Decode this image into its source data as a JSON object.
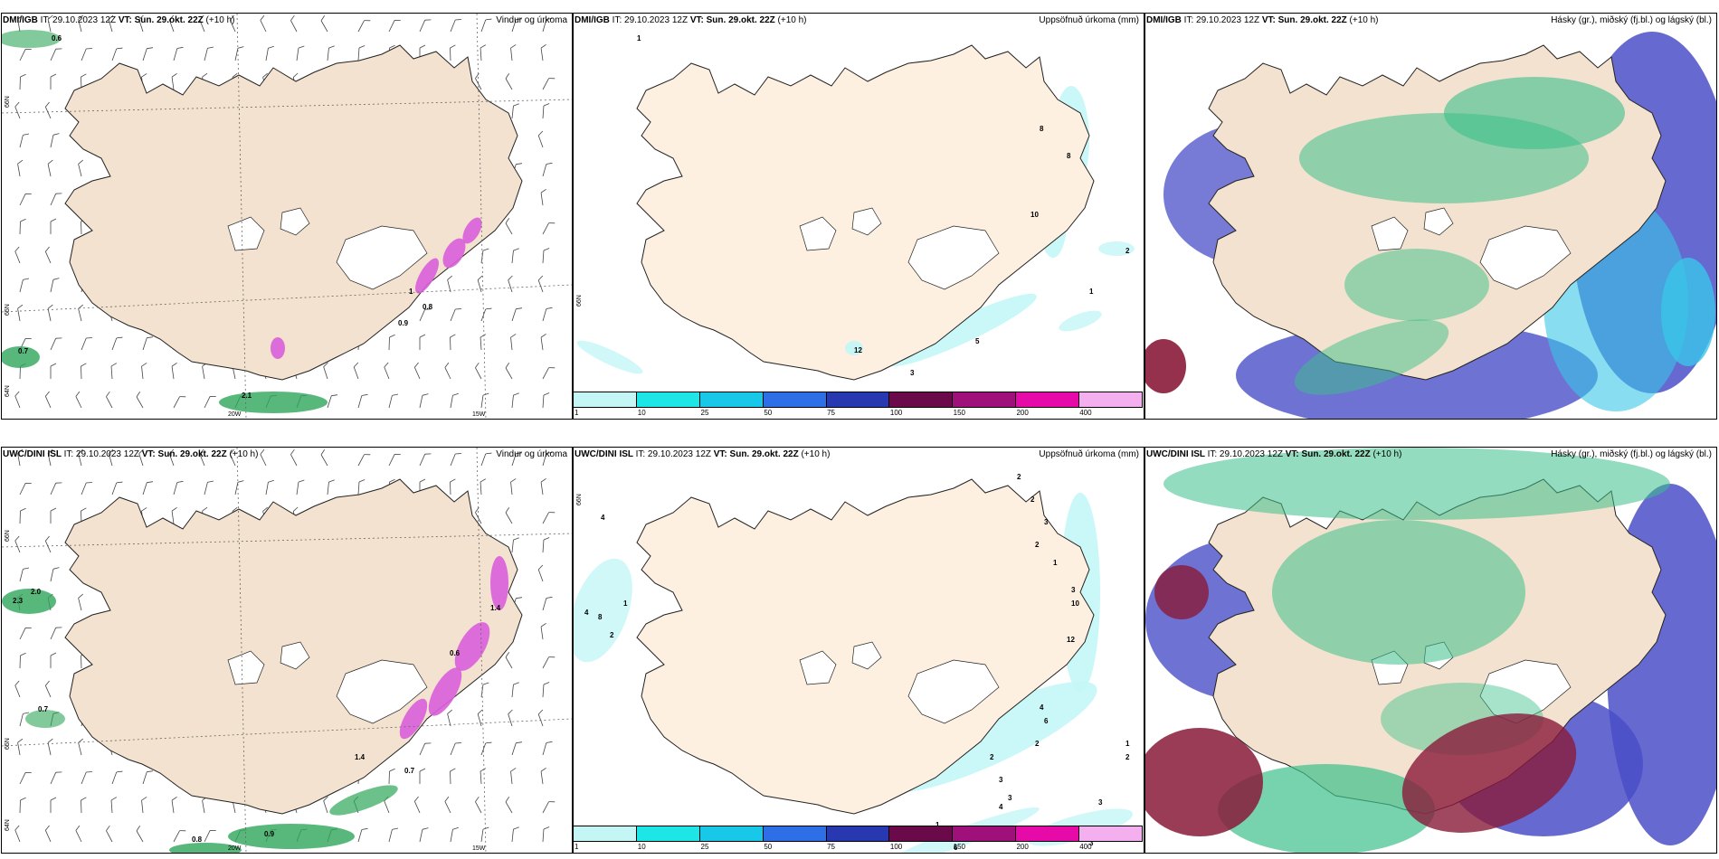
{
  "panels": [
    {
      "id": "p1",
      "model": "DMI/IGB",
      "it_label": "IT:",
      "it": "29.10.2023 12Z",
      "vt_label": "VT: Sun. 29.okt. 22Z",
      "lead": "(+10 h)",
      "title": "Vindur og úrkoma",
      "values": [
        "0.6",
        "0.8",
        "0.9",
        "2.1",
        "1",
        "0.7"
      ],
      "axis_labels": [
        "66N",
        "65N",
        "64N",
        "20W",
        "15W"
      ]
    },
    {
      "id": "p2",
      "model": "DMI/IGB",
      "it_label": "IT:",
      "it": "29.10.2023 12Z",
      "vt_label": "VT: Sun. 29.okt. 22Z",
      "lead": "(+10 h)",
      "title": "Uppsöfnuð úrkoma (mm)",
      "values": [
        "1",
        "8",
        "8",
        "10",
        "2",
        "1",
        "5",
        "3",
        "12"
      ],
      "axis_labels": [
        "66N"
      ]
    },
    {
      "id": "p3",
      "model": "DMI/IGB",
      "it_label": "IT:",
      "it": "29.10.2023 12Z",
      "vt_label": "VT: Sun. 29.okt. 22Z",
      "lead": "(+10 h)",
      "title": "Hásky (gr.), miðský (fj.bl.) og lágský (bl.)"
    },
    {
      "id": "p4",
      "model": "UWC/DINI ISL",
      "it_label": "IT:",
      "it": "29.10.2023 12Z",
      "vt_label": "VT: Sun. 29.okt. 22Z",
      "lead": "(+10 h)",
      "title": "Vindur og úrkoma",
      "values": [
        "2.3",
        "2.0",
        "0.7",
        "0.7",
        "1.4",
        "0.8",
        "0.9",
        "0.6",
        "1.4"
      ],
      "axis_labels": [
        "66N",
        "65N",
        "64N",
        "20W",
        "15W"
      ]
    },
    {
      "id": "p5",
      "model": "UWC/DINI ISL",
      "it_label": "IT:",
      "it": "29.10.2023 12Z",
      "vt_label": "VT: Sun. 29.okt. 22Z",
      "lead": "(+10 h)",
      "title": "Uppsöfnuð úrkoma (mm)",
      "values": [
        "4",
        "4",
        "8",
        "1",
        "2",
        "2",
        "2",
        "3",
        "2",
        "1",
        "3",
        "10",
        "12",
        "4",
        "6",
        "2",
        "3",
        "4",
        "3",
        "2",
        "3",
        "3",
        "6",
        "1",
        "1",
        "2"
      ],
      "axis_labels": [
        "66N"
      ]
    },
    {
      "id": "p6",
      "model": "UWC/DINI ISL",
      "it_label": "IT:",
      "it": "29.10.2023 12Z",
      "vt_label": "VT: Sun. 29.okt. 22Z",
      "lead": "(+10 h)",
      "title": "Hásky (gr.), miðský (fj.bl.) og lágský (bl.)"
    }
  ],
  "legend": {
    "ticks": [
      "1",
      "10",
      "25",
      "50",
      "75",
      "100",
      "150",
      "200",
      "400"
    ],
    "colors": [
      "#c4f6f6",
      "#1fe6e6",
      "#18c8e8",
      "#2e6ee6",
      "#2738b0",
      "#6a0a4a",
      "#a0107a",
      "#e60aa8",
      "#f4b0ee"
    ]
  },
  "colors": {
    "land": "#f3e2cf",
    "land_cum": "#fdf0e1",
    "ice": "#ffffff",
    "precip_green": "#2ea65a",
    "precip_pink": "#d95fd9",
    "cloud_high": "#3cc08a",
    "cloud_mid": "#4a4fc8",
    "cloud_low": "#39c6e8",
    "cloud_dark": "#8a1a3a"
  }
}
